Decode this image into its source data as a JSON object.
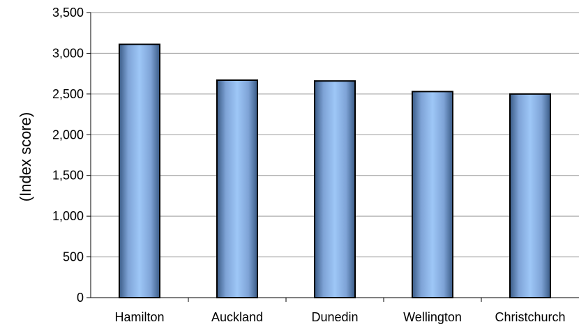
{
  "chart_data": {
    "type": "bar",
    "categories": [
      "Hamilton",
      "Auckland",
      "Dunedin",
      "Wellington",
      "Christchurch"
    ],
    "values": [
      3110,
      2670,
      2660,
      2530,
      2500
    ],
    "title": "",
    "xlabel": "",
    "ylabel": "(Index score)",
    "ylim": [
      0,
      3500
    ],
    "yticks": [
      0,
      500,
      1000,
      1500,
      2000,
      2500,
      3000,
      3500
    ],
    "ytick_labels": [
      "0",
      "500",
      "1,000",
      "1,500",
      "2,000",
      "2,500",
      "3,000",
      "3,500"
    ],
    "grid": true,
    "legend": "none",
    "bar_color": "#8fb8f0",
    "bar_edge_color": "#000000"
  }
}
